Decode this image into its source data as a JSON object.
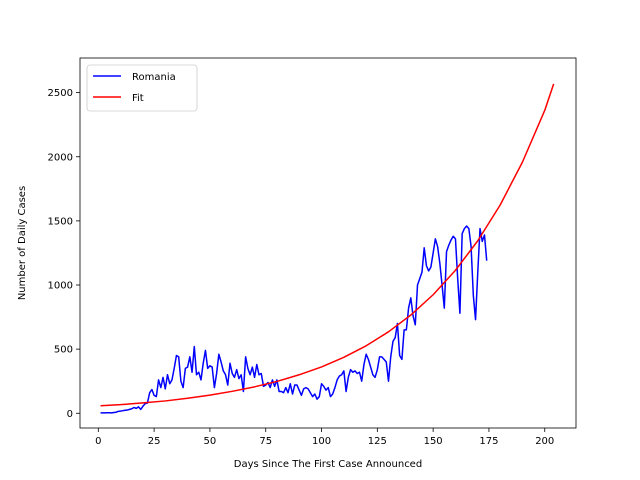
{
  "chart_data": {
    "type": "line",
    "xlabel": "Days Since The First Case Announced",
    "ylabel": "Number of Daily Cases",
    "xlim": [
      -8.2,
      214
    ],
    "ylim": [
      -115,
      2770
    ],
    "xticks": [
      0,
      25,
      50,
      75,
      100,
      125,
      150,
      175,
      200
    ],
    "yticks": [
      0,
      500,
      1000,
      1500,
      2000,
      2500
    ],
    "legend_position": "top-left",
    "grid": false,
    "series": [
      {
        "name": "Romania",
        "color": "#0000ff",
        "x": [
          1,
          2,
          3,
          4,
          5,
          6,
          7,
          8,
          9,
          10,
          11,
          12,
          13,
          14,
          15,
          16,
          17,
          18,
          19,
          20,
          21,
          22,
          23,
          24,
          25,
          26,
          27,
          28,
          29,
          30,
          31,
          32,
          33,
          34,
          35,
          36,
          37,
          38,
          39,
          40,
          41,
          42,
          43,
          44,
          45,
          46,
          47,
          48,
          49,
          50,
          51,
          52,
          53,
          54,
          55,
          56,
          57,
          58,
          59,
          60,
          61,
          62,
          63,
          64,
          65,
          66,
          67,
          68,
          69,
          70,
          71,
          72,
          73,
          74,
          75,
          76,
          77,
          78,
          79,
          80,
          81,
          82,
          83,
          84,
          85,
          86,
          87,
          88,
          89,
          90,
          91,
          92,
          93,
          94,
          95,
          96,
          97,
          98,
          99,
          100,
          101,
          102,
          103,
          104,
          105,
          106,
          107,
          108,
          109,
          110,
          111,
          112,
          113,
          114,
          115,
          116,
          117,
          118,
          119,
          120,
          121,
          122,
          123,
          124,
          125,
          126,
          127,
          128,
          129,
          130,
          131,
          132,
          133,
          134,
          135,
          136,
          137,
          138,
          139,
          140,
          141,
          142,
          143,
          144,
          145,
          146,
          147,
          148,
          149,
          150,
          151,
          152,
          153,
          154,
          155,
          156,
          157,
          158,
          159,
          160,
          161,
          162,
          163,
          164,
          165,
          166,
          167,
          168,
          169,
          170,
          171,
          172,
          173,
          174
        ],
        "y": [
          3,
          3,
          3,
          4,
          4,
          3,
          6,
          8,
          15,
          17,
          20,
          23,
          25,
          30,
          35,
          45,
          38,
          50,
          30,
          55,
          75,
          80,
          160,
          185,
          140,
          130,
          260,
          200,
          280,
          190,
          300,
          230,
          260,
          350,
          450,
          440,
          250,
          200,
          350,
          360,
          440,
          320,
          520,
          300,
          320,
          260,
          390,
          490,
          350,
          370,
          360,
          200,
          310,
          460,
          400,
          330,
          300,
          220,
          390,
          310,
          280,
          340,
          270,
          300,
          170,
          440,
          350,
          300,
          360,
          280,
          380,
          300,
          310,
          210,
          220,
          240,
          200,
          260,
          210,
          260,
          170,
          170,
          160,
          200,
          160,
          230,
          150,
          220,
          220,
          180,
          140,
          190,
          200,
          190,
          160,
          130,
          150,
          110,
          130,
          230,
          210,
          180,
          200,
          130,
          150,
          200,
          260,
          290,
          300,
          330,
          170,
          280,
          340,
          320,
          330,
          310,
          320,
          250,
          380,
          460,
          420,
          360,
          300,
          280,
          340,
          440,
          440,
          420,
          400,
          250,
          440,
          560,
          590,
          700,
          450,
          420,
          650,
          650,
          820,
          900,
          760,
          690,
          1000,
          1050,
          1100,
          1290,
          1150,
          1110,
          1140,
          1250,
          1360,
          1300,
          1170,
          1000,
          820,
          1260,
          1310,
          1350,
          1380,
          1360,
          1050,
          780,
          1400,
          1440,
          1460,
          1440,
          1300,
          920,
          730,
          1100,
          1440,
          1340,
          1390,
          1190
        ]
      },
      {
        "name": "Fit",
        "color": "#ff0000",
        "x": [
          1,
          10,
          20,
          30,
          40,
          50,
          60,
          70,
          80,
          90,
          100,
          110,
          120,
          130,
          140,
          150,
          160,
          170,
          180,
          190,
          200,
          204
        ],
        "y": [
          58,
          67,
          81,
          96,
          117,
          141,
          171,
          206,
          248,
          300,
          361,
          436,
          526,
          635,
          766,
          924,
          1115,
          1345,
          1623,
          1958,
          2362,
          2568
        ]
      }
    ]
  }
}
